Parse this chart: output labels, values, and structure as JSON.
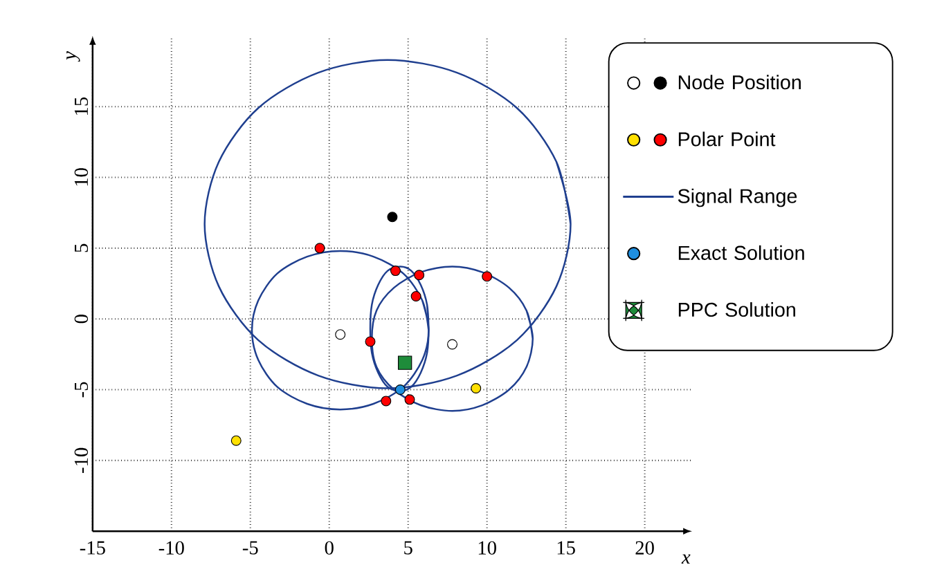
{
  "chart_data": {
    "type": "scatter",
    "xlabel": "x",
    "ylabel": "y",
    "xlim": [
      -15,
      23
    ],
    "ylim": [
      -15,
      20
    ],
    "xticks": [
      -15,
      -10,
      -5,
      0,
      5,
      10,
      15,
      20
    ],
    "yticks": [
      -10,
      -5,
      0,
      5,
      10,
      15
    ],
    "grid": true,
    "legend": "right",
    "series": [
      {
        "name": "Node Position",
        "color": "#000000",
        "marker": "circle",
        "x": [
          4.0
        ],
        "values": [
          7.2
        ]
      },
      {
        "color": "#ffffff",
        "marker": "circle",
        "x": [
          0.7,
          7.8
        ],
        "values": [
          -1.1,
          -1.8
        ]
      },
      {
        "name": "Polar Point",
        "color": "#ff0000",
        "marker": "circle",
        "x": [
          -0.6,
          4.2,
          5.7,
          10.0,
          5.5,
          2.6,
          3.6,
          5.1
        ],
        "values": [
          5.0,
          3.4,
          3.1,
          3.0,
          1.6,
          -1.6,
          -5.8,
          -5.7
        ]
      },
      {
        "color": "#ffe000",
        "marker": "circle",
        "x": [
          9.3,
          -5.9
        ],
        "values": [
          -4.9,
          -8.6
        ]
      },
      {
        "name": "Signal Range",
        "type": "line",
        "color": "#1f3f8f",
        "marker": "none",
        "x": [
          15.3,
          14.4,
          11.9,
          8.1,
          3.7,
          -0.7,
          -4.5,
          -7.0,
          -7.9,
          -7.0,
          -4.5,
          -0.7,
          3.7,
          8.1,
          11.9,
          14.4,
          15.3
        ],
        "values": [
          6.7,
          11.1,
          14.9,
          17.4,
          18.3,
          17.4,
          14.9,
          11.1,
          6.7,
          2.3,
          -1.5,
          -4.0,
          -4.9,
          -4.0,
          -1.5,
          2.3,
          6.7
        ]
      },
      {
        "type": "line",
        "color": "#1f3f8f",
        "marker": "none",
        "x": [
          6.3,
          5.9,
          4.7,
          2.8,
          0.7,
          -1.4,
          -3.3,
          -4.5,
          -4.9,
          -4.5,
          -3.3,
          -1.4,
          0.7,
          2.8,
          4.7,
          5.9,
          6.3
        ],
        "values": [
          -0.8,
          1.3,
          3.2,
          4.4,
          4.8,
          4.4,
          3.2,
          1.3,
          -0.8,
          -2.9,
          -4.8,
          -6.0,
          -6.4,
          -6.0,
          -4.8,
          -2.9,
          -0.8
        ]
      },
      {
        "type": "line",
        "color": "#1f3f8f",
        "marker": "none",
        "x": [
          6.3,
          6.2,
          5.8,
          5.2,
          4.5,
          3.7,
          3.1,
          2.7,
          2.6,
          2.7,
          3.1,
          3.7,
          4.5,
          5.2,
          5.8,
          6.2,
          6.3
        ],
        "values": [
          -0.7,
          1.0,
          2.4,
          3.4,
          3.7,
          3.4,
          2.4,
          1.0,
          -0.7,
          -2.4,
          -3.8,
          -4.8,
          -5.1,
          -4.8,
          -3.8,
          -2.4,
          -0.7
        ]
      },
      {
        "type": "line",
        "color": "#1f3f8f",
        "marker": "none",
        "x": [
          12.9,
          12.5,
          11.4,
          9.7,
          7.8,
          5.8,
          4.1,
          3.0,
          2.7,
          3.0,
          4.1,
          5.8,
          7.8,
          9.7,
          11.4,
          12.5,
          12.9
        ],
        "values": [
          -1.4,
          0.6,
          2.2,
          3.3,
          3.7,
          3.3,
          2.2,
          0.6,
          -1.4,
          -3.4,
          -5.0,
          -6.1,
          -6.5,
          -6.1,
          -5.0,
          -3.4,
          -1.4
        ]
      },
      {
        "name": "Exact Solution",
        "color": "#1f8fe0",
        "marker": "circle",
        "x": [
          4.5
        ],
        "values": [
          -5.0
        ]
      },
      {
        "name": "PPC Solution",
        "color": "#1e8c3a",
        "marker": "square",
        "x": [
          4.8
        ],
        "values": [
          -3.1
        ]
      }
    ]
  }
}
